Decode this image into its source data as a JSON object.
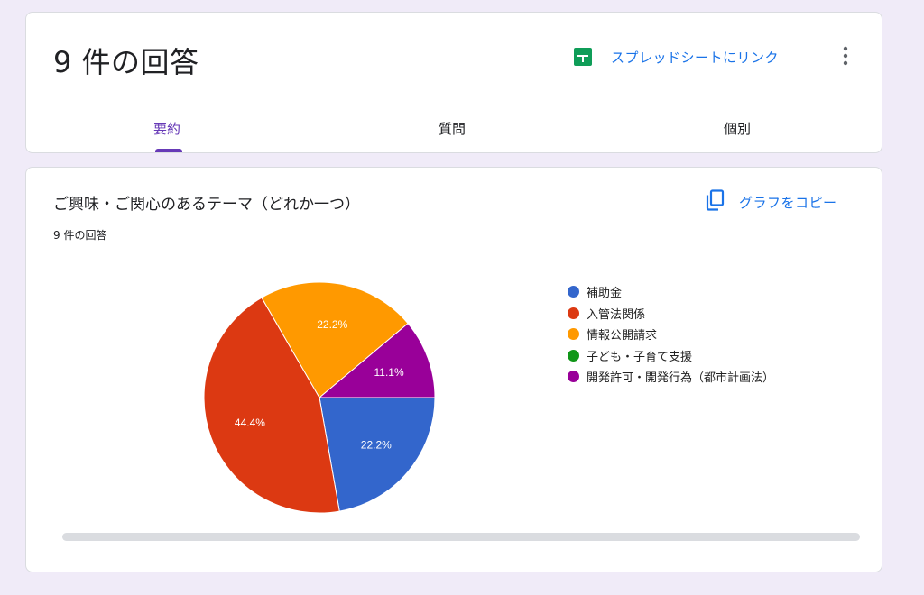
{
  "header": {
    "title": "9 件の回答",
    "sheets_link_label": "スプレッドシートにリンク",
    "tabs": [
      {
        "label": "要約",
        "active": true
      },
      {
        "label": "質問",
        "active": false
      },
      {
        "label": "個別",
        "active": false
      }
    ]
  },
  "summary": {
    "question_title": "ご興味・ご関心のあるテーマ（どれか一つ）",
    "response_count": "9 件の回答",
    "copy_chart_label": "グラフをコピー"
  },
  "colors": {
    "accent": "#673ab7",
    "link": "#1a73e8",
    "sheets_green": "#0f9d58"
  },
  "icons": {
    "sheets": "sheets-icon",
    "more": "more-vert-icon",
    "copy": "copy-icon"
  },
  "chart_data": {
    "type": "pie",
    "categories": [
      "補助金",
      "入管法関係",
      "情報公開請求",
      "子ども・子育て支援",
      "開発許可・開発行為（都市計画法）"
    ],
    "values": [
      2,
      4,
      2,
      0,
      1
    ],
    "percent_labels": [
      "22.2%",
      "44.4%",
      "22.2%",
      "",
      "11.1%"
    ],
    "colors": [
      "#3366cc",
      "#dc3912",
      "#ff9900",
      "#109618",
      "#990099"
    ],
    "legend_position": "right"
  }
}
